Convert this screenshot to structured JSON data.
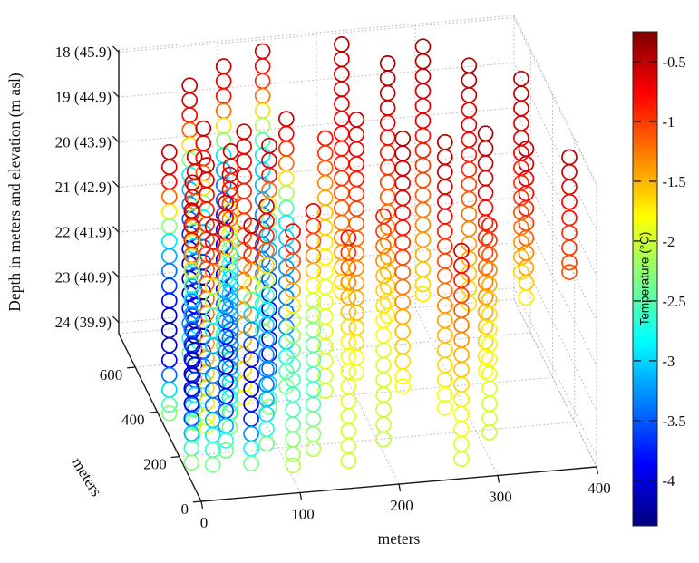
{
  "figure": {
    "background": "#ffffff"
  },
  "chart_data": {
    "type": "scatter",
    "projection": "3d",
    "title": "",
    "xlabel": "meters",
    "ylabel": "meters",
    "zlabel": "Depth in meters and elevation (m asl)",
    "xlim": [
      0,
      400
    ],
    "ylim": [
      0,
      750
    ],
    "zlim": [
      17.95,
      24.25
    ],
    "z_reversed": true,
    "grid": true,
    "x_ticks": [
      0,
      100,
      200,
      300,
      400
    ],
    "y_ticks": [
      0,
      200,
      400,
      600
    ],
    "z_ticks": [
      18,
      19,
      20,
      21,
      22,
      23,
      24
    ],
    "z_tick_labels": [
      "18 (45.9)",
      "19 (44.9)",
      "20 (43.9)",
      "21 (42.9)",
      "22 (41.9)",
      "23 (40.9)",
      "24 (39.9)"
    ],
    "colorbar": {
      "label": "Temperature (°C)",
      "colormap": "jet",
      "vmin": -4.38,
      "vmax": -0.25,
      "ticks": [
        -0.5,
        -1,
        -1.5,
        -2,
        -2.5,
        -3,
        -3.5,
        -4
      ],
      "tick_labels": [
        "-0.5",
        "-1",
        "-1.5",
        "-2",
        "-2.5",
        "-3",
        "-3.5",
        "-4"
      ],
      "position": "right"
    },
    "marker": {
      "shape": "open-circle",
      "radius_px": 8,
      "stroke_px": 1.7
    },
    "sample_interval_m": 0.33,
    "boreholes": [
      {
        "x": 8,
        "y": 160,
        "profile": [
          [
            18.6,
            -0.5
          ],
          [
            19.4,
            -0.85
          ],
          [
            20.0,
            -1.8
          ],
          [
            20.6,
            -2.9
          ],
          [
            21.5,
            -3.6
          ],
          [
            22.4,
            -4.15
          ],
          [
            23.0,
            -3.95
          ],
          [
            23.6,
            -3.0
          ],
          [
            24.2,
            -2.3
          ]
        ]
      },
      {
        "x": 25,
        "y": 120,
        "profile": [
          [
            18.8,
            -0.55
          ],
          [
            19.7,
            -1.1
          ],
          [
            20.4,
            -2.1
          ],
          [
            21.1,
            -2.9
          ],
          [
            21.8,
            -3.25
          ],
          [
            22.6,
            -3.45
          ],
          [
            23.4,
            -2.9
          ],
          [
            24.2,
            -2.25
          ]
        ]
      },
      {
        "x": 45,
        "y": 180,
        "profile": [
          [
            18.6,
            -0.5
          ],
          [
            19.3,
            -0.9
          ],
          [
            19.9,
            -1.9
          ],
          [
            20.5,
            -3.0
          ],
          [
            21.4,
            -3.7
          ],
          [
            22.3,
            -4.2
          ],
          [
            23.1,
            -3.8
          ],
          [
            23.7,
            -2.95
          ],
          [
            24.1,
            -2.35
          ]
        ]
      },
      {
        "x": 65,
        "y": 130,
        "profile": [
          [
            18.9,
            -0.5
          ],
          [
            19.6,
            -0.9
          ],
          [
            20.2,
            -1.85
          ],
          [
            20.8,
            -2.95
          ],
          [
            21.6,
            -3.65
          ],
          [
            22.5,
            -4.1
          ],
          [
            23.2,
            -3.7
          ],
          [
            23.8,
            -2.9
          ],
          [
            24.2,
            -2.3
          ]
        ]
      },
      {
        "x": 85,
        "y": 170,
        "profile": [
          [
            18.7,
            -0.55
          ],
          [
            19.6,
            -1.05
          ],
          [
            20.3,
            -2.0
          ],
          [
            21.0,
            -2.85
          ],
          [
            21.8,
            -3.2
          ],
          [
            22.7,
            -3.4
          ],
          [
            23.5,
            -2.85
          ],
          [
            24.1,
            -2.25
          ]
        ]
      },
      {
        "x": 105,
        "y": 110,
        "profile": [
          [
            19.0,
            -0.7
          ],
          [
            20.1,
            -1.3
          ],
          [
            21.0,
            -2.0
          ],
          [
            21.8,
            -2.45
          ],
          [
            22.8,
            -2.6
          ],
          [
            24.2,
            -2.1
          ]
        ]
      },
      {
        "x": 20,
        "y": 260,
        "profile": [
          [
            18.5,
            -0.5
          ],
          [
            19.3,
            -0.85
          ],
          [
            19.9,
            -1.8
          ],
          [
            20.5,
            -2.9
          ],
          [
            21.5,
            -3.6
          ],
          [
            22.4,
            -4.15
          ],
          [
            23.0,
            -3.9
          ],
          [
            23.6,
            -3.0
          ],
          [
            24.2,
            -2.3
          ]
        ]
      },
      {
        "x": 40,
        "y": 310,
        "profile": [
          [
            18.4,
            -0.55
          ],
          [
            19.8,
            -0.95
          ],
          [
            21.5,
            -1.25
          ],
          [
            23.0,
            -1.55
          ],
          [
            24.2,
            -1.85
          ]
        ]
      },
      {
        "x": 60,
        "y": 280,
        "profile": [
          [
            18.5,
            -0.55
          ],
          [
            19.4,
            -1.1
          ],
          [
            20.1,
            -2.1
          ],
          [
            20.8,
            -2.9
          ],
          [
            21.8,
            -3.25
          ],
          [
            22.6,
            -3.45
          ],
          [
            23.4,
            -2.9
          ],
          [
            24.2,
            -2.25
          ]
        ]
      },
      {
        "x": 10,
        "y": 380,
        "profile": [
          [
            18.4,
            -0.5
          ],
          [
            19.2,
            -0.85
          ],
          [
            19.8,
            -1.85
          ],
          [
            20.4,
            -2.95
          ],
          [
            21.4,
            -3.65
          ],
          [
            22.3,
            -4.2
          ],
          [
            23.0,
            -3.9
          ],
          [
            23.7,
            -2.95
          ],
          [
            24.2,
            -2.3
          ]
        ]
      },
      {
        "x": 30,
        "y": 330,
        "profile": [
          [
            18.3,
            -0.5
          ],
          [
            19.1,
            -0.9
          ],
          [
            19.7,
            -1.9
          ],
          [
            20.3,
            -3.0
          ],
          [
            21.3,
            -3.7
          ],
          [
            22.2,
            -4.2
          ],
          [
            22.9,
            -3.95
          ],
          [
            23.6,
            -3.0
          ],
          [
            24.2,
            -2.3
          ]
        ]
      },
      {
        "x": 50,
        "y": 430,
        "profile": [
          [
            18.2,
            -0.5
          ],
          [
            19.0,
            -0.85
          ],
          [
            19.6,
            -1.8
          ],
          [
            20.2,
            -2.9
          ],
          [
            21.2,
            -3.7
          ],
          [
            22.2,
            -4.35
          ],
          [
            23.0,
            -4.1
          ],
          [
            23.7,
            -3.1
          ],
          [
            24.2,
            -2.4
          ]
        ]
      },
      {
        "x": 70,
        "y": 360,
        "profile": [
          [
            18.4,
            -0.55
          ],
          [
            19.3,
            -1.1
          ],
          [
            20.0,
            -2.05
          ],
          [
            20.7,
            -2.9
          ],
          [
            21.7,
            -3.25
          ],
          [
            22.6,
            -3.45
          ],
          [
            23.4,
            -2.9
          ],
          [
            24.2,
            -2.25
          ]
        ]
      },
      {
        "x": 90,
        "y": 420,
        "profile": [
          [
            18.3,
            -0.55
          ],
          [
            19.7,
            -0.9
          ],
          [
            21.4,
            -1.2
          ],
          [
            23.0,
            -1.5
          ],
          [
            24.2,
            -1.8
          ]
        ]
      },
      {
        "x": 110,
        "y": 370,
        "profile": [
          [
            18.4,
            -0.5
          ],
          [
            19.2,
            -0.9
          ],
          [
            19.8,
            -1.85
          ],
          [
            20.4,
            -2.95
          ],
          [
            21.4,
            -3.6
          ],
          [
            22.4,
            -4.1
          ],
          [
            23.1,
            -3.8
          ],
          [
            23.7,
            -3.0
          ],
          [
            24.2,
            -2.3
          ]
        ]
      },
      {
        "x": 135,
        "y": 440,
        "profile": [
          [
            18.2,
            -0.55
          ],
          [
            19.1,
            -1.1
          ],
          [
            19.8,
            -2.1
          ],
          [
            20.5,
            -2.9
          ],
          [
            21.7,
            -3.3
          ],
          [
            22.6,
            -3.4
          ],
          [
            23.4,
            -2.85
          ],
          [
            24.2,
            -2.25
          ]
        ]
      },
      {
        "x": 55,
        "y": 600,
        "profile": [
          [
            18.1,
            -0.5
          ],
          [
            18.9,
            -0.85
          ],
          [
            19.5,
            -1.8
          ],
          [
            20.1,
            -2.9
          ],
          [
            21.3,
            -3.65
          ],
          [
            22.3,
            -4.15
          ],
          [
            23.0,
            -3.9
          ],
          [
            23.6,
            -3.0
          ],
          [
            24.2,
            -2.3
          ]
        ]
      },
      {
        "x": 95,
        "y": 650,
        "profile": [
          [
            18.0,
            -0.5
          ],
          [
            18.8,
            -0.9
          ],
          [
            19.4,
            -1.85
          ],
          [
            20.0,
            -2.95
          ],
          [
            21.2,
            -3.7
          ],
          [
            22.2,
            -4.2
          ],
          [
            22.9,
            -3.9
          ],
          [
            23.6,
            -3.0
          ],
          [
            24.2,
            -2.35
          ]
        ]
      },
      {
        "x": 140,
        "y": 700,
        "profile": [
          [
            18.0,
            -0.55
          ],
          [
            18.9,
            -1.1
          ],
          [
            19.6,
            -2.05
          ],
          [
            20.3,
            -2.9
          ],
          [
            21.6,
            -3.3
          ],
          [
            22.5,
            -3.45
          ],
          [
            23.4,
            -2.9
          ],
          [
            24.2,
            -2.25
          ]
        ]
      },
      {
        "x": 130,
        "y": 150,
        "profile": [
          [
            18.8,
            -0.7
          ],
          [
            19.9,
            -1.35
          ],
          [
            20.8,
            -2.05
          ],
          [
            21.8,
            -2.45
          ],
          [
            22.8,
            -2.6
          ],
          [
            24.1,
            -2.1
          ]
        ]
      },
      {
        "x": 160,
        "y": 100,
        "profile": [
          [
            19.2,
            -0.8
          ],
          [
            20.6,
            -1.5
          ],
          [
            21.8,
            -1.85
          ],
          [
            24.2,
            -2.0
          ]
        ]
      },
      {
        "x": 170,
        "y": 400,
        "profile": [
          [
            18.5,
            -0.8
          ],
          [
            19.9,
            -1.5
          ],
          [
            21.8,
            -1.85
          ],
          [
            24.2,
            -2.0
          ]
        ]
      },
      {
        "x": 200,
        "y": 140,
        "profile": [
          [
            19.0,
            -0.85
          ],
          [
            20.4,
            -1.55
          ],
          [
            21.9,
            -1.9
          ],
          [
            24.0,
            -2.05
          ]
        ]
      },
      {
        "x": 205,
        "y": 430,
        "profile": [
          [
            18.3,
            -0.5
          ],
          [
            19.7,
            -0.9
          ],
          [
            21.4,
            -1.3
          ],
          [
            23.0,
            -1.6
          ],
          [
            24.0,
            -1.9
          ]
        ]
      },
      {
        "x": 220,
        "y": 700,
        "profile": [
          [
            18.0,
            -0.45
          ],
          [
            19.6,
            -0.7
          ],
          [
            21.2,
            -1.0
          ],
          [
            22.4,
            -1.3
          ],
          [
            23.5,
            -1.7
          ]
        ]
      },
      {
        "x": 245,
        "y": 370,
        "profile": [
          [
            18.5,
            -0.4
          ],
          [
            19.7,
            -0.65
          ],
          [
            20.9,
            -0.95
          ],
          [
            22.3,
            -1.4
          ],
          [
            24.0,
            -1.8
          ]
        ]
      },
      {
        "x": 260,
        "y": 640,
        "profile": [
          [
            18.2,
            -0.4
          ],
          [
            19.4,
            -0.65
          ],
          [
            20.6,
            -0.95
          ],
          [
            22.3,
            -1.4
          ],
          [
            23.8,
            -1.75
          ]
        ]
      },
      {
        "x": 270,
        "y": 60,
        "profile": [
          [
            19.5,
            -0.6
          ],
          [
            20.7,
            -1.1
          ],
          [
            21.9,
            -1.5
          ],
          [
            23.1,
            -1.8
          ],
          [
            24.2,
            -2.0
          ]
        ]
      },
      {
        "x": 280,
        "y": 300,
        "profile": [
          [
            18.3,
            -0.4
          ],
          [
            19.5,
            -0.65
          ],
          [
            20.7,
            -1.0
          ],
          [
            22.3,
            -1.45
          ],
          [
            24.2,
            -1.85
          ]
        ]
      },
      {
        "x": 300,
        "y": 680,
        "profile": [
          [
            18.1,
            -0.4
          ],
          [
            19.3,
            -0.6
          ],
          [
            20.5,
            -0.9
          ],
          [
            22.2,
            -1.35
          ],
          [
            23.6,
            -1.7
          ]
        ]
      },
      {
        "x": 305,
        "y": 120,
        "profile": [
          [
            19.3,
            -0.85
          ],
          [
            20.7,
            -1.5
          ],
          [
            22.0,
            -1.85
          ],
          [
            23.9,
            -2.0
          ]
        ]
      },
      {
        "x": 330,
        "y": 380,
        "profile": [
          [
            18.6,
            -0.4
          ],
          [
            19.8,
            -0.65
          ],
          [
            21.0,
            -0.95
          ],
          [
            22.4,
            -1.4
          ],
          [
            23.9,
            -1.8
          ]
        ]
      },
      {
        "x": 340,
        "y": 620,
        "profile": [
          [
            18.3,
            -0.4
          ],
          [
            19.5,
            -0.65
          ],
          [
            20.7,
            -0.95
          ],
          [
            22.3,
            -1.4
          ],
          [
            23.6,
            -1.7
          ]
        ]
      },
      {
        "x": 390,
        "y": 550,
        "profile": [
          [
            19.9,
            -0.5
          ],
          [
            21.3,
            -0.9
          ],
          [
            22.5,
            -1.4
          ],
          [
            23.3,
            -1.8
          ]
        ]
      },
      {
        "x": 395,
        "y": 640,
        "profile": [
          [
            18.8,
            -0.45
          ],
          [
            20.4,
            -0.75
          ],
          [
            21.8,
            -1.1
          ],
          [
            23.2,
            -1.7
          ]
        ]
      },
      {
        "x": 400,
        "y": 247,
        "profile": [
          [
            18.6,
            -0.5
          ],
          [
            19.7,
            -0.8
          ]
        ]
      },
      {
        "x": 400,
        "y": 247,
        "profile": [
          [
            19.95,
            -0.85
          ],
          [
            21.15,
            -1.1
          ]
        ]
      }
    ]
  }
}
